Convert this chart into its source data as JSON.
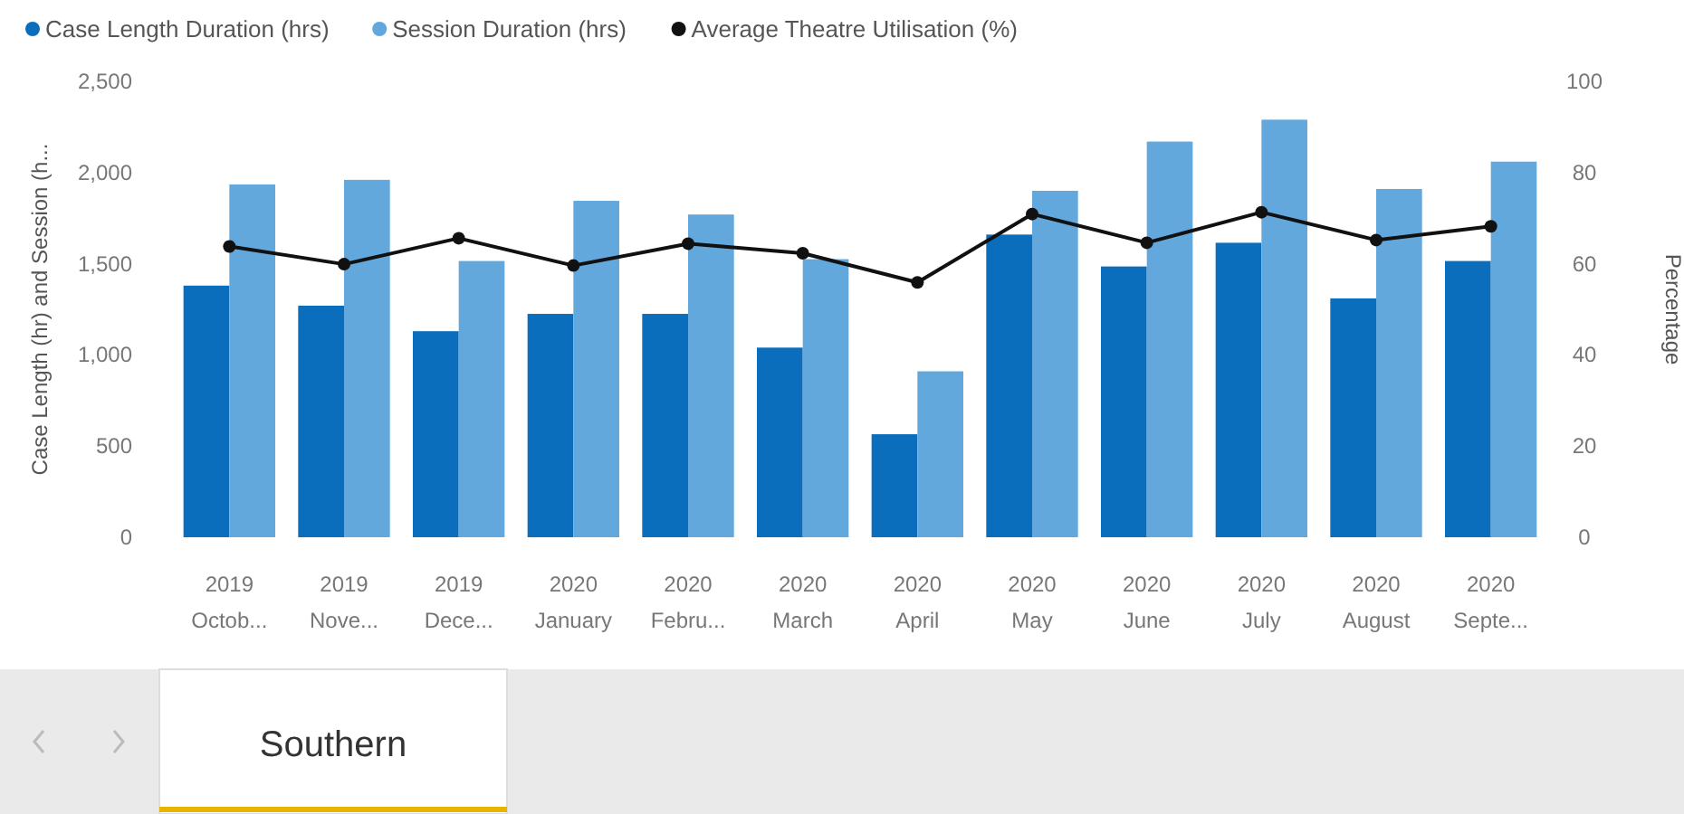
{
  "chart_data": {
    "type": "bar",
    "categories": [
      "2019 Octob...",
      "2019 Nove...",
      "2019 Dece...",
      "2020 January",
      "2020 Febru...",
      "2020 March",
      "2020 April",
      "2020 May",
      "2020 June",
      "2020 July",
      "2020 August",
      "2020 Septe..."
    ],
    "series": [
      {
        "name": "Case Length Duration (hrs)",
        "color": "#0a6ebd",
        "values": [
          1380,
          1270,
          1130,
          1225,
          1225,
          1040,
          565,
          1660,
          1485,
          1615,
          1310,
          1515
        ]
      },
      {
        "name": "Session Duration (hrs)",
        "color": "#63a8dc",
        "values": [
          1935,
          1960,
          1515,
          1845,
          1770,
          1525,
          910,
          1900,
          2170,
          2290,
          1910,
          2060
        ]
      },
      {
        "name": "Average Theatre Utilisation (%)",
        "type": "line",
        "axis": "y2",
        "color": "#111111",
        "marker": "circle",
        "values": [
          63.8,
          59.9,
          65.6,
          59.6,
          64.4,
          62.3,
          55.9,
          70.9,
          64.6,
          71.3,
          65.2,
          68.2
        ]
      }
    ],
    "ylabel": "Case Length (hr) and Session (h...",
    "y2label": "Percentage",
    "ylim": [
      0,
      2500
    ],
    "yticks": [
      {
        "value": 0,
        "label": "0"
      },
      {
        "value": 500,
        "label": "500"
      },
      {
        "value": 1000,
        "label": "1,000"
      },
      {
        "value": 1500,
        "label": "1,500"
      },
      {
        "value": 2000,
        "label": "2,000"
      },
      {
        "value": 2500,
        "label": "2,500"
      }
    ],
    "y2lim": [
      0,
      100
    ],
    "y2ticks": [
      0,
      20,
      40,
      60,
      80,
      100
    ],
    "legend": "top left",
    "grid": false,
    "annotations": [
      "Southern"
    ]
  }
}
